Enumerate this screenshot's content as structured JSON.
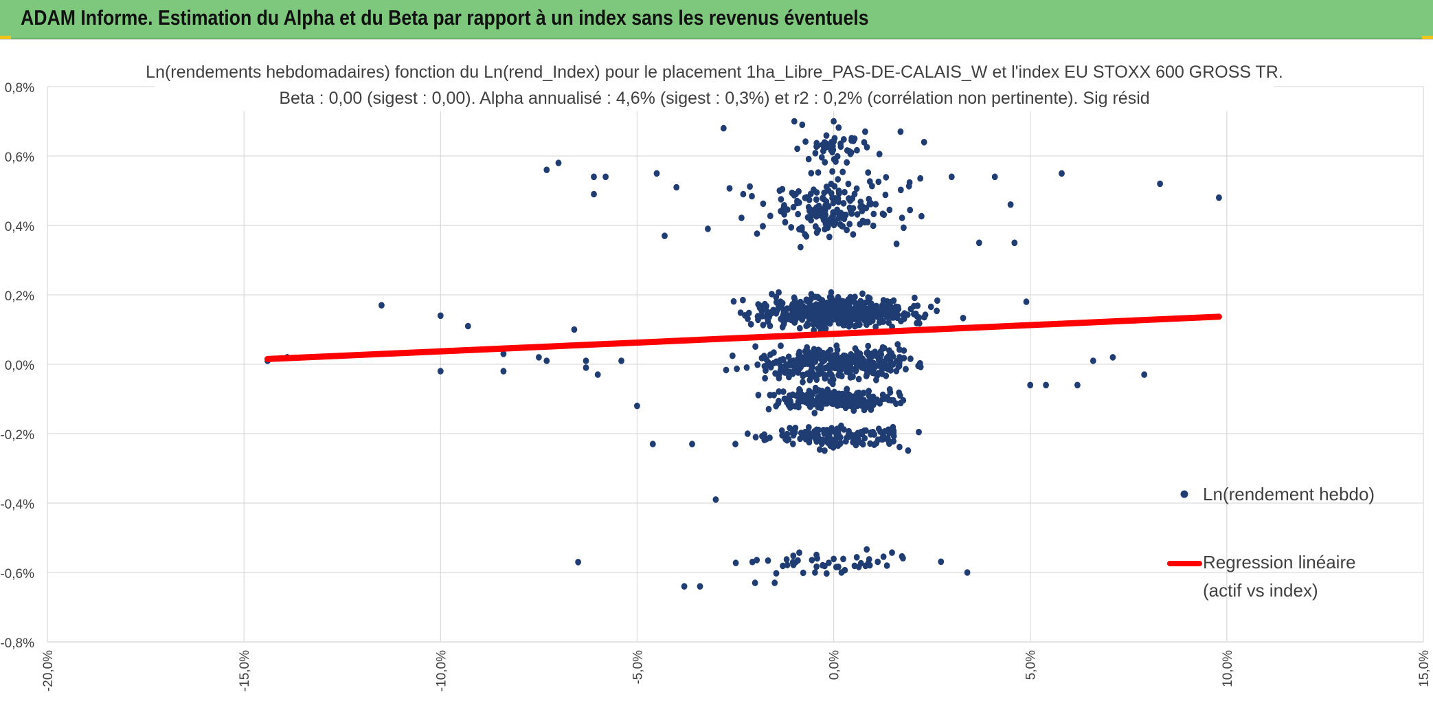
{
  "banner": {
    "title": "ADAM Informe. Estimation du Alpha et du Beta par rapport à un index sans les revenus éventuels",
    "background": "#7dc87c",
    "corner_color": "#f0c419"
  },
  "chart_data": {
    "type": "scatter",
    "title": "Ln(rendements hebdomadaires) fonction du Ln(rend_Index) pour le placement 1ha_Libre_PAS-DE-CALAIS_W et l'index EU STOXX 600 GROSS TR.",
    "subtitle": "Beta : 0,00 (sigest : 0,00). Alpha annualisé : 4,6% (sigest : 0,3%) et r2 : 0,2% (corrélation non pertinente). Sig résid",
    "xlabel": "",
    "ylabel": "",
    "xlim": [
      -0.2,
      0.15
    ],
    "ylim": [
      -0.008,
      0.008
    ],
    "x_ticks": [
      -0.2,
      -0.15,
      -0.1,
      -0.05,
      0.0,
      0.05,
      0.1,
      0.15
    ],
    "x_tick_labels": [
      "-20,0%",
      "-15,0%",
      "-10,0%",
      "-5,0%",
      "0,0%",
      "5,0%",
      "10,0%",
      "15,0%"
    ],
    "y_ticks": [
      0.008,
      0.006,
      0.004,
      0.002,
      0.0,
      -0.002,
      -0.004,
      -0.006,
      -0.008
    ],
    "y_tick_labels": [
      "0,8%",
      "0,6%",
      "0,4%",
      "0,2%",
      "0,0%",
      "-0,2%",
      "-0,4%",
      "-0,6%",
      "-0,8%"
    ],
    "grid": true,
    "legend_position": "right",
    "series": [
      {
        "name": "Ln(rendement hebdo)",
        "kind": "scatter",
        "color": "#1f3d73",
        "n_points_estimated": 1500,
        "points": [
          [
            -0.144,
            0.0001
          ],
          [
            -0.139,
            0.0002
          ],
          [
            -0.115,
            0.0017
          ],
          [
            -0.1,
            0.0014
          ],
          [
            -0.1,
            -0.0002
          ],
          [
            -0.093,
            0.0011
          ],
          [
            -0.084,
            0.0003
          ],
          [
            -0.084,
            -0.0002
          ],
          [
            -0.075,
            0.0002
          ],
          [
            -0.073,
            0.0001
          ],
          [
            -0.073,
            0.0056
          ],
          [
            -0.07,
            0.0058
          ],
          [
            -0.066,
            0.001
          ],
          [
            -0.065,
            -0.0057
          ],
          [
            -0.063,
            0.0001
          ],
          [
            -0.063,
            -0.0001
          ],
          [
            -0.061,
            0.0054
          ],
          [
            -0.061,
            0.0049
          ],
          [
            -0.06,
            -0.0003
          ],
          [
            -0.058,
            0.0054
          ],
          [
            -0.054,
            0.0001
          ],
          [
            -0.05,
            -0.0012
          ],
          [
            -0.046,
            -0.0023
          ],
          [
            -0.045,
            0.0055
          ],
          [
            -0.043,
            0.0037
          ],
          [
            -0.04,
            0.0051
          ],
          [
            -0.038,
            -0.0064
          ],
          [
            -0.036,
            -0.0023
          ],
          [
            -0.034,
            -0.0064
          ],
          [
            -0.032,
            0.0039
          ],
          [
            -0.03,
            -0.0039
          ],
          [
            -0.028,
            0.0068
          ],
          [
            -0.025,
            -0.0023
          ],
          [
            -0.023,
            0.0049
          ],
          [
            -0.02,
            -0.0063
          ],
          [
            -0.015,
            -0.0063
          ],
          [
            -0.01,
            0.007
          ],
          [
            -0.008,
            0.0069
          ],
          [
            0.0,
            0.007
          ],
          [
            0.002,
            -0.006
          ],
          [
            0.008,
            0.0067
          ],
          [
            0.017,
            0.0067
          ],
          [
            0.023,
            0.0064
          ],
          [
            0.03,
            0.0054
          ],
          [
            0.034,
            -0.006
          ],
          [
            0.037,
            0.0035
          ],
          [
            0.041,
            0.0054
          ],
          [
            0.045,
            0.0046
          ],
          [
            0.046,
            0.0035
          ],
          [
            0.049,
            0.0018
          ],
          [
            0.05,
            -0.0006
          ],
          [
            0.054,
            -0.0006
          ],
          [
            0.058,
            0.0055
          ],
          [
            0.062,
            -0.0006
          ],
          [
            0.066,
            0.0001
          ],
          [
            0.071,
            0.0002
          ],
          [
            0.079,
            -0.0003
          ],
          [
            0.083,
            0.0052
          ],
          [
            0.098,
            0.0048
          ]
        ]
      },
      {
        "name": "Regression linéaire (actif vs index)",
        "legend_lines": [
          "Regression linéaire",
          "(actif vs index)"
        ],
        "kind": "line",
        "color": "#ff0000",
        "x": [
          -0.144,
          0.098
        ],
        "y": [
          0.00015,
          0.00137
        ]
      }
    ]
  }
}
